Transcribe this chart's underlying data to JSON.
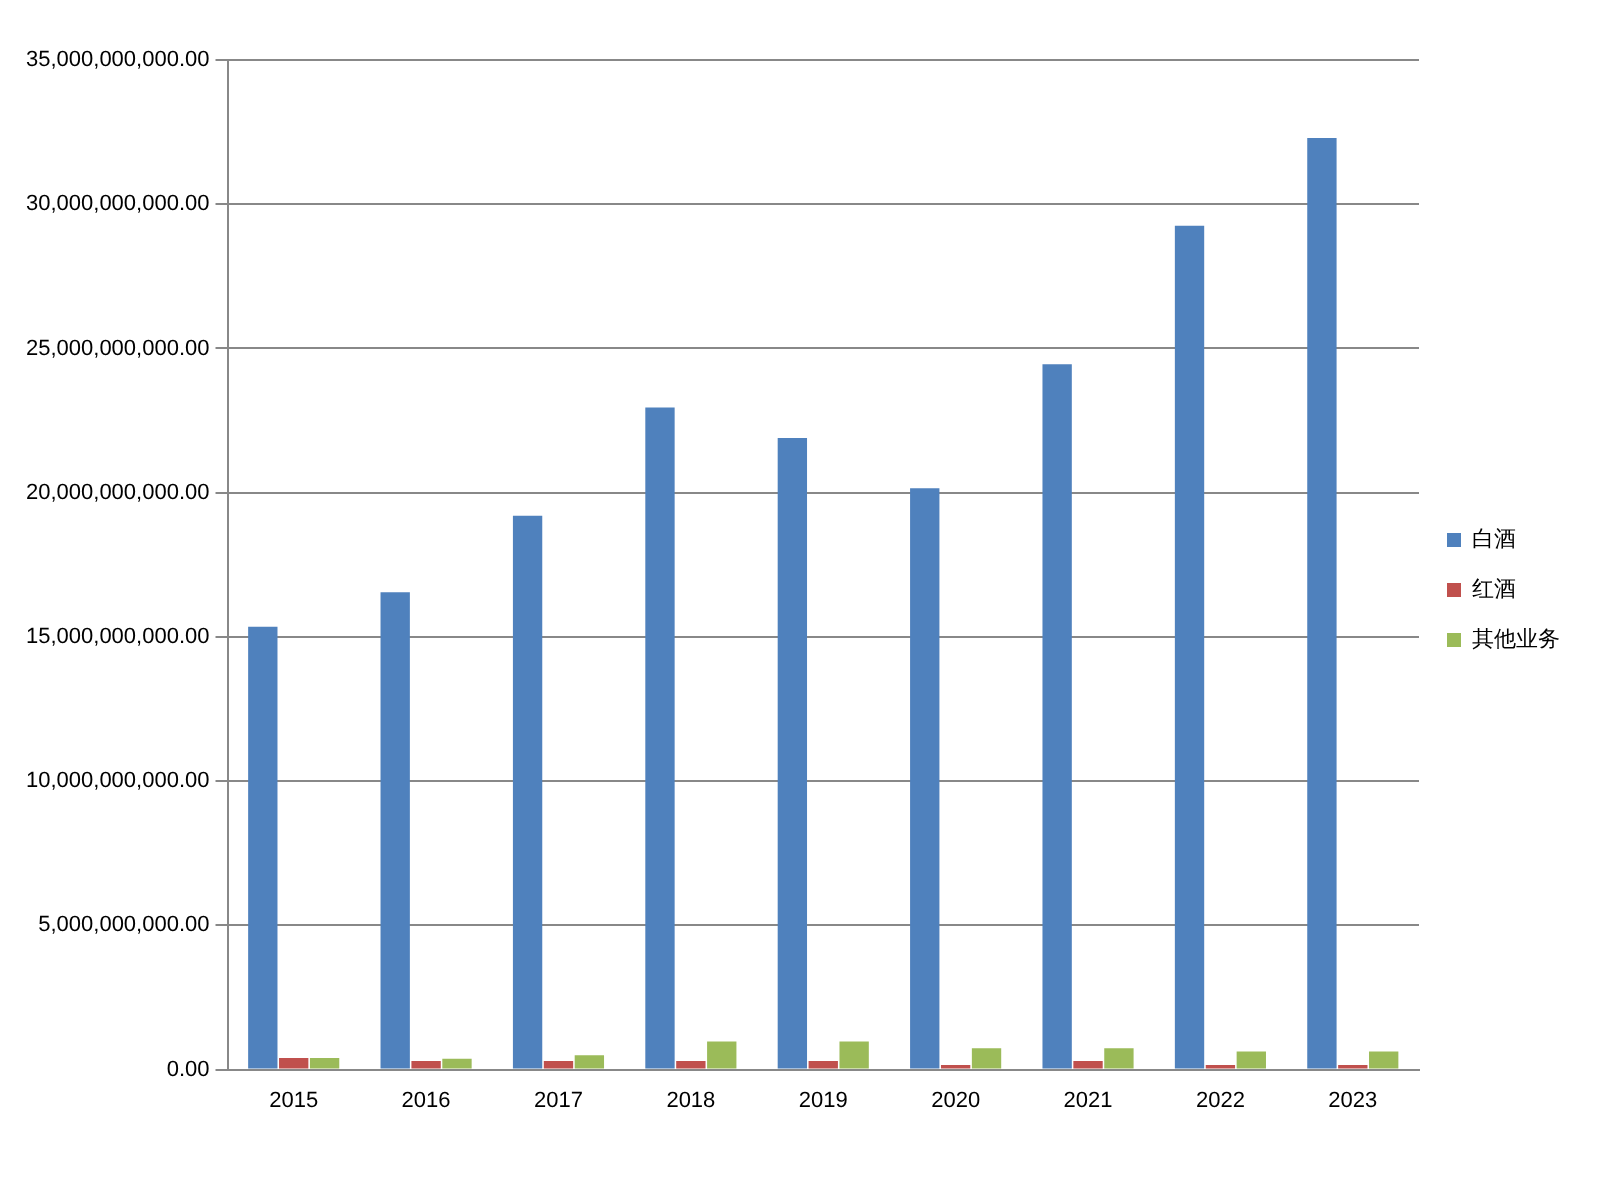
{
  "chart_data": {
    "type": "bar",
    "categories": [
      "2015",
      "2016",
      "2017",
      "2018",
      "2019",
      "2020",
      "2021",
      "2022",
      "2023"
    ],
    "series": [
      {
        "name": "白酒",
        "color": "#4f81bd",
        "values": [
          15350000000,
          16550000000,
          19200000000,
          22950000000,
          21900000000,
          20150000000,
          24450000000,
          29250000000,
          32300000000
        ]
      },
      {
        "name": "红酒",
        "color": "#c0504d",
        "values": [
          400000000,
          300000000,
          300000000,
          300000000,
          300000000,
          160000000,
          300000000,
          160000000,
          160000000
        ]
      },
      {
        "name": "其他业务",
        "color": "#9bbb59",
        "values": [
          400000000,
          380000000,
          500000000,
          970000000,
          970000000,
          740000000,
          740000000,
          630000000,
          630000000
        ]
      }
    ],
    "ylim": [
      0,
      35000000000
    ],
    "yticks": [
      {
        "value": 0,
        "label": "0.00"
      },
      {
        "value": 5000000000,
        "label": "5,000,000,000.00"
      },
      {
        "value": 10000000000,
        "label": "10,000,000,000.00"
      },
      {
        "value": 15000000000,
        "label": "15,000,000,000.00"
      },
      {
        "value": 20000000000,
        "label": "20,000,000,000.00"
      },
      {
        "value": 25000000000,
        "label": "25,000,000,000.00"
      },
      {
        "value": 30000000000,
        "label": "30,000,000,000.00"
      },
      {
        "value": 35000000000,
        "label": "35,000,000,000.00"
      }
    ],
    "grid": "y",
    "legend": "right"
  }
}
